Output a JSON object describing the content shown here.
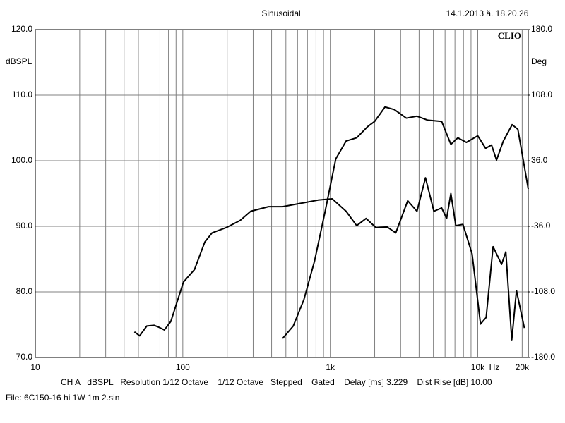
{
  "chart_data": {
    "type": "line",
    "title": "Sinusoidal",
    "date": "14.1.2013 ä. 18.20.26",
    "brand": "CLIO",
    "y_label": "dBSPL",
    "y2_label": "Deg",
    "x_unit": "Hz",
    "info": "CH A   dBSPL   Resolution 1/12 Octave    1/12 Octave   Stepped    Gated    Delay [ms] 3.229    Dist Rise [dB] 10.00",
    "file": "File: 6C150-16 hi 1W 1m 2.sin",
    "xscale": "log",
    "grid": true,
    "color": "#000000",
    "xlim": [
      10,
      22000
    ],
    "ylim": [
      70,
      120
    ],
    "y2lim": [
      -180,
      180
    ],
    "xticks": [
      10,
      100,
      {
        "value": 1000,
        "label": "1k"
      },
      {
        "value": 10000,
        "label": "10k"
      },
      {
        "value": 20000,
        "label": "20k"
      }
    ],
    "xminor": [
      20,
      30,
      40,
      50,
      60,
      70,
      80,
      90,
      200,
      300,
      400,
      500,
      600,
      700,
      800,
      900,
      2000,
      3000,
      4000,
      5000,
      6000,
      7000,
      8000,
      9000
    ],
    "yticks": [
      {
        "value": 70,
        "label": "70.0"
      },
      {
        "value": 80,
        "label": "80.0"
      },
      {
        "value": 90,
        "label": "90.0"
      },
      {
        "value": 100,
        "label": "100.0"
      },
      {
        "value": 110,
        "label": "110.0"
      },
      {
        "value": 120,
        "label": "120.0"
      }
    ],
    "y2ticks": [
      {
        "value": -180,
        "label": "-180.0"
      },
      {
        "value": -108,
        "label": "-108.0"
      },
      {
        "value": -36,
        "label": "-36.0"
      },
      {
        "value": 36,
        "label": "36.0"
      },
      {
        "value": 108,
        "label": "108.0"
      },
      {
        "value": 180,
        "label": "180.0"
      }
    ],
    "series": [
      {
        "color": "#000000",
        "x": [
          47,
          51,
          57,
          64,
          69,
          75,
          83,
          101,
          120,
          141,
          158,
          197,
          245,
          289,
          381,
          475,
          593,
          826,
          1030,
          1280,
          1510,
          1750,
          2040,
          2430,
          2780,
          3350,
          3870,
          4420,
          5040,
          5690,
          6150,
          6570,
          7100,
          7930,
          9150,
          10440,
          11400,
          12700,
          14500,
          15500,
          17000,
          18300,
          20700
        ],
        "values": [
          73.9,
          73.3,
          74.8,
          74.9,
          74.6,
          74.2,
          75.5,
          81.5,
          83.4,
          87.6,
          89.0,
          89.8,
          90.9,
          92.3,
          93.0,
          93.0,
          93.4,
          94.0,
          94.2,
          92.3,
          90.1,
          91.2,
          89.8,
          89.9,
          89.0,
          93.9,
          92.3,
          97.4,
          92.3,
          92.8,
          91.2,
          95.0,
          90.1,
          90.3,
          85.8,
          75.1,
          76.1,
          86.9,
          84.2,
          86.1,
          72.7,
          80.2,
          74.5
        ]
      },
      {
        "color": "#000000",
        "x": [
          475,
          561,
          662,
          782,
          923,
          1090,
          1280,
          1510,
          1790,
          2000,
          2350,
          2720,
          3280,
          3870,
          4560,
          5690,
          6570,
          7330,
          8370,
          10000,
          11300,
          12400,
          13400,
          14900,
          17100,
          18700,
          22000
        ],
        "values": [
          72.9,
          74.8,
          78.8,
          84.7,
          92.3,
          100.3,
          103.0,
          103.5,
          105.2,
          106.0,
          108.2,
          107.8,
          106.5,
          106.8,
          106.2,
          106.0,
          102.5,
          103.5,
          102.8,
          103.8,
          101.9,
          102.4,
          100.1,
          103.0,
          105.5,
          104.8,
          95.7
        ]
      }
    ]
  }
}
